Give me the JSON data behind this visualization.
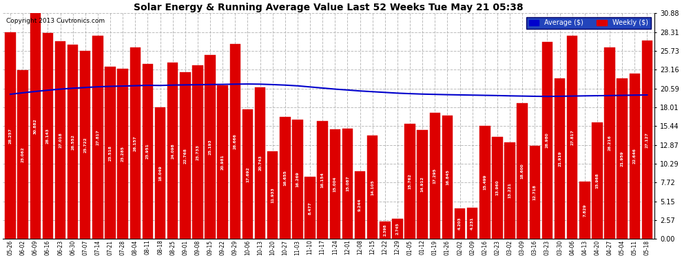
{
  "title": "Solar Energy & Running Average Value Last 52 Weeks Tue May 21 05:38",
  "copyright": "Copyright 2013 Cuvtronics.com",
  "legend_avg": "Average ($)",
  "legend_weekly": "Weekly ($)",
  "bar_color": "#dd0000",
  "avg_line_color": "#0000cc",
  "background_color": "#ffffff",
  "grid_color": "#aaaaaa",
  "yticks": [
    0.0,
    2.57,
    5.15,
    7.72,
    10.29,
    12.87,
    15.44,
    18.01,
    20.59,
    23.16,
    25.73,
    28.31,
    30.88
  ],
  "ymax": 30.88,
  "ymin": 0.0,
  "dates": [
    "05-26",
    "06-02",
    "06-09",
    "06-16",
    "06-23",
    "06-30",
    "07-07",
    "07-14",
    "07-21",
    "07-28",
    "08-04",
    "08-11",
    "08-18",
    "08-25",
    "09-01",
    "09-08",
    "09-15",
    "09-22",
    "09-29",
    "10-06",
    "10-13",
    "10-20",
    "10-27",
    "11-03",
    "11-10",
    "11-17",
    "11-24",
    "12-01",
    "12-08",
    "12-15",
    "12-22",
    "12-29",
    "01-05",
    "01-12",
    "01-19",
    "01-26",
    "02-02",
    "02-09",
    "02-16",
    "02-23",
    "03-02",
    "03-09",
    "03-16",
    "03-23",
    "03-30",
    "04-06",
    "04-13",
    "04-20",
    "04-27",
    "05-04",
    "05-11",
    "05-18"
  ],
  "weekly_values": [
    28.257,
    23.062,
    30.882,
    28.143,
    27.018,
    26.552,
    25.722,
    27.817,
    23.518,
    23.285,
    26.157,
    23.951,
    18.049,
    24.098,
    22.768,
    23.733,
    25.193,
    20.981,
    26.666,
    17.692,
    20.743,
    11.933,
    16.655,
    16.269,
    8.477,
    16.154,
    15.004,
    15.087,
    9.244,
    14.105,
    2.398,
    2.745,
    15.762,
    14.912,
    17.295,
    16.845,
    4.203,
    4.231,
    15.499,
    13.96,
    13.221,
    18.6,
    12.718,
    26.98,
    21.919,
    27.817,
    7.829,
    15.968,
    26.216,
    21.959,
    22.646,
    27.127
  ],
  "avg_values": [
    19.8,
    20.0,
    20.18,
    20.35,
    20.5,
    20.62,
    20.72,
    20.82,
    20.88,
    20.92,
    20.97,
    21.02,
    21.0,
    21.05,
    21.08,
    21.1,
    21.13,
    21.15,
    21.18,
    21.2,
    21.18,
    21.12,
    21.05,
    20.95,
    20.8,
    20.65,
    20.5,
    20.38,
    20.25,
    20.15,
    20.05,
    19.95,
    19.88,
    19.82,
    19.78,
    19.74,
    19.71,
    19.68,
    19.65,
    19.62,
    19.58,
    19.55,
    19.52,
    19.5,
    19.52,
    19.55,
    19.58,
    19.6,
    19.62,
    19.65,
    19.68,
    19.7
  ]
}
